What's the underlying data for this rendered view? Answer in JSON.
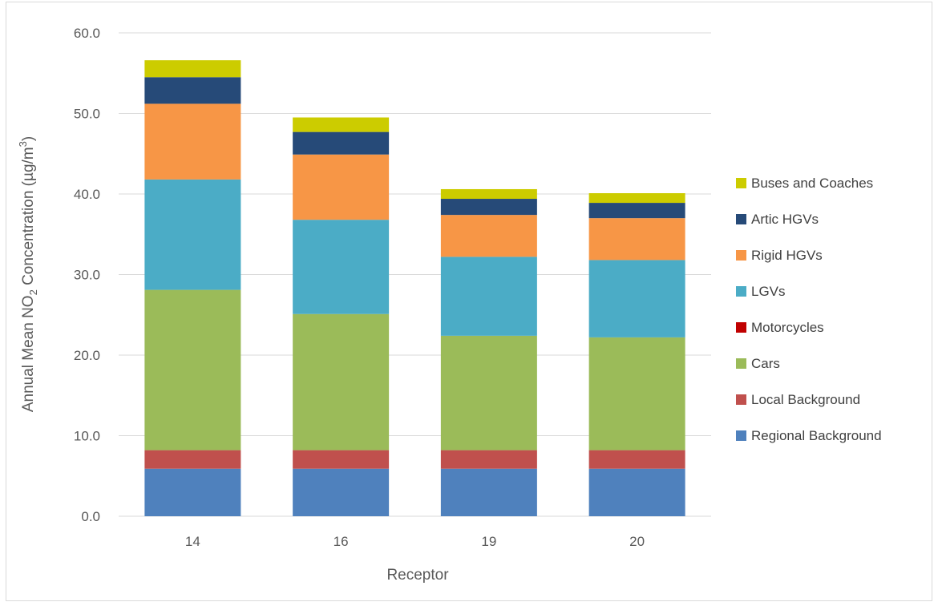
{
  "chart_data": {
    "type": "bar",
    "stacked": true,
    "categories": [
      "14",
      "16",
      "19",
      "20"
    ],
    "xlabel": "Receptor",
    "ylabel": {
      "prefix": "Annual Mean NO",
      "sub": "2",
      "middle": " Concentration (µg/m",
      "sup": "3",
      "suffix": ")"
    },
    "ylim": [
      0,
      60
    ],
    "yticks": [
      "0.0",
      "10.0",
      "20.0",
      "30.0",
      "40.0",
      "50.0",
      "60.0"
    ],
    "grid": true,
    "legend_position": "right",
    "series": [
      {
        "name": "Regional Background",
        "color": "#4f81bd",
        "values": [
          5.9,
          5.9,
          5.9,
          5.9
        ]
      },
      {
        "name": "Local Background",
        "color": "#c0504d",
        "values": [
          2.3,
          2.3,
          2.3,
          2.3
        ]
      },
      {
        "name": "Cars",
        "color": "#9bbb59",
        "values": [
          19.9,
          16.9,
          14.2,
          14.0
        ]
      },
      {
        "name": "Motorcycles",
        "color": "#c00000",
        "values": [
          0.0,
          0.0,
          0.0,
          0.0
        ]
      },
      {
        "name": "LGVs",
        "color": "#4bacc6",
        "values": [
          13.7,
          11.7,
          9.8,
          9.6
        ]
      },
      {
        "name": "Rigid HGVs",
        "color": "#f79646",
        "values": [
          9.4,
          8.1,
          5.2,
          5.2
        ]
      },
      {
        "name": "Artic HGVs",
        "color": "#264a78",
        "values": [
          3.3,
          2.8,
          2.0,
          1.9
        ]
      },
      {
        "name": "Buses and Coaches",
        "color": "#cccc00",
        "values": [
          2.1,
          1.8,
          1.2,
          1.2
        ]
      }
    ]
  }
}
